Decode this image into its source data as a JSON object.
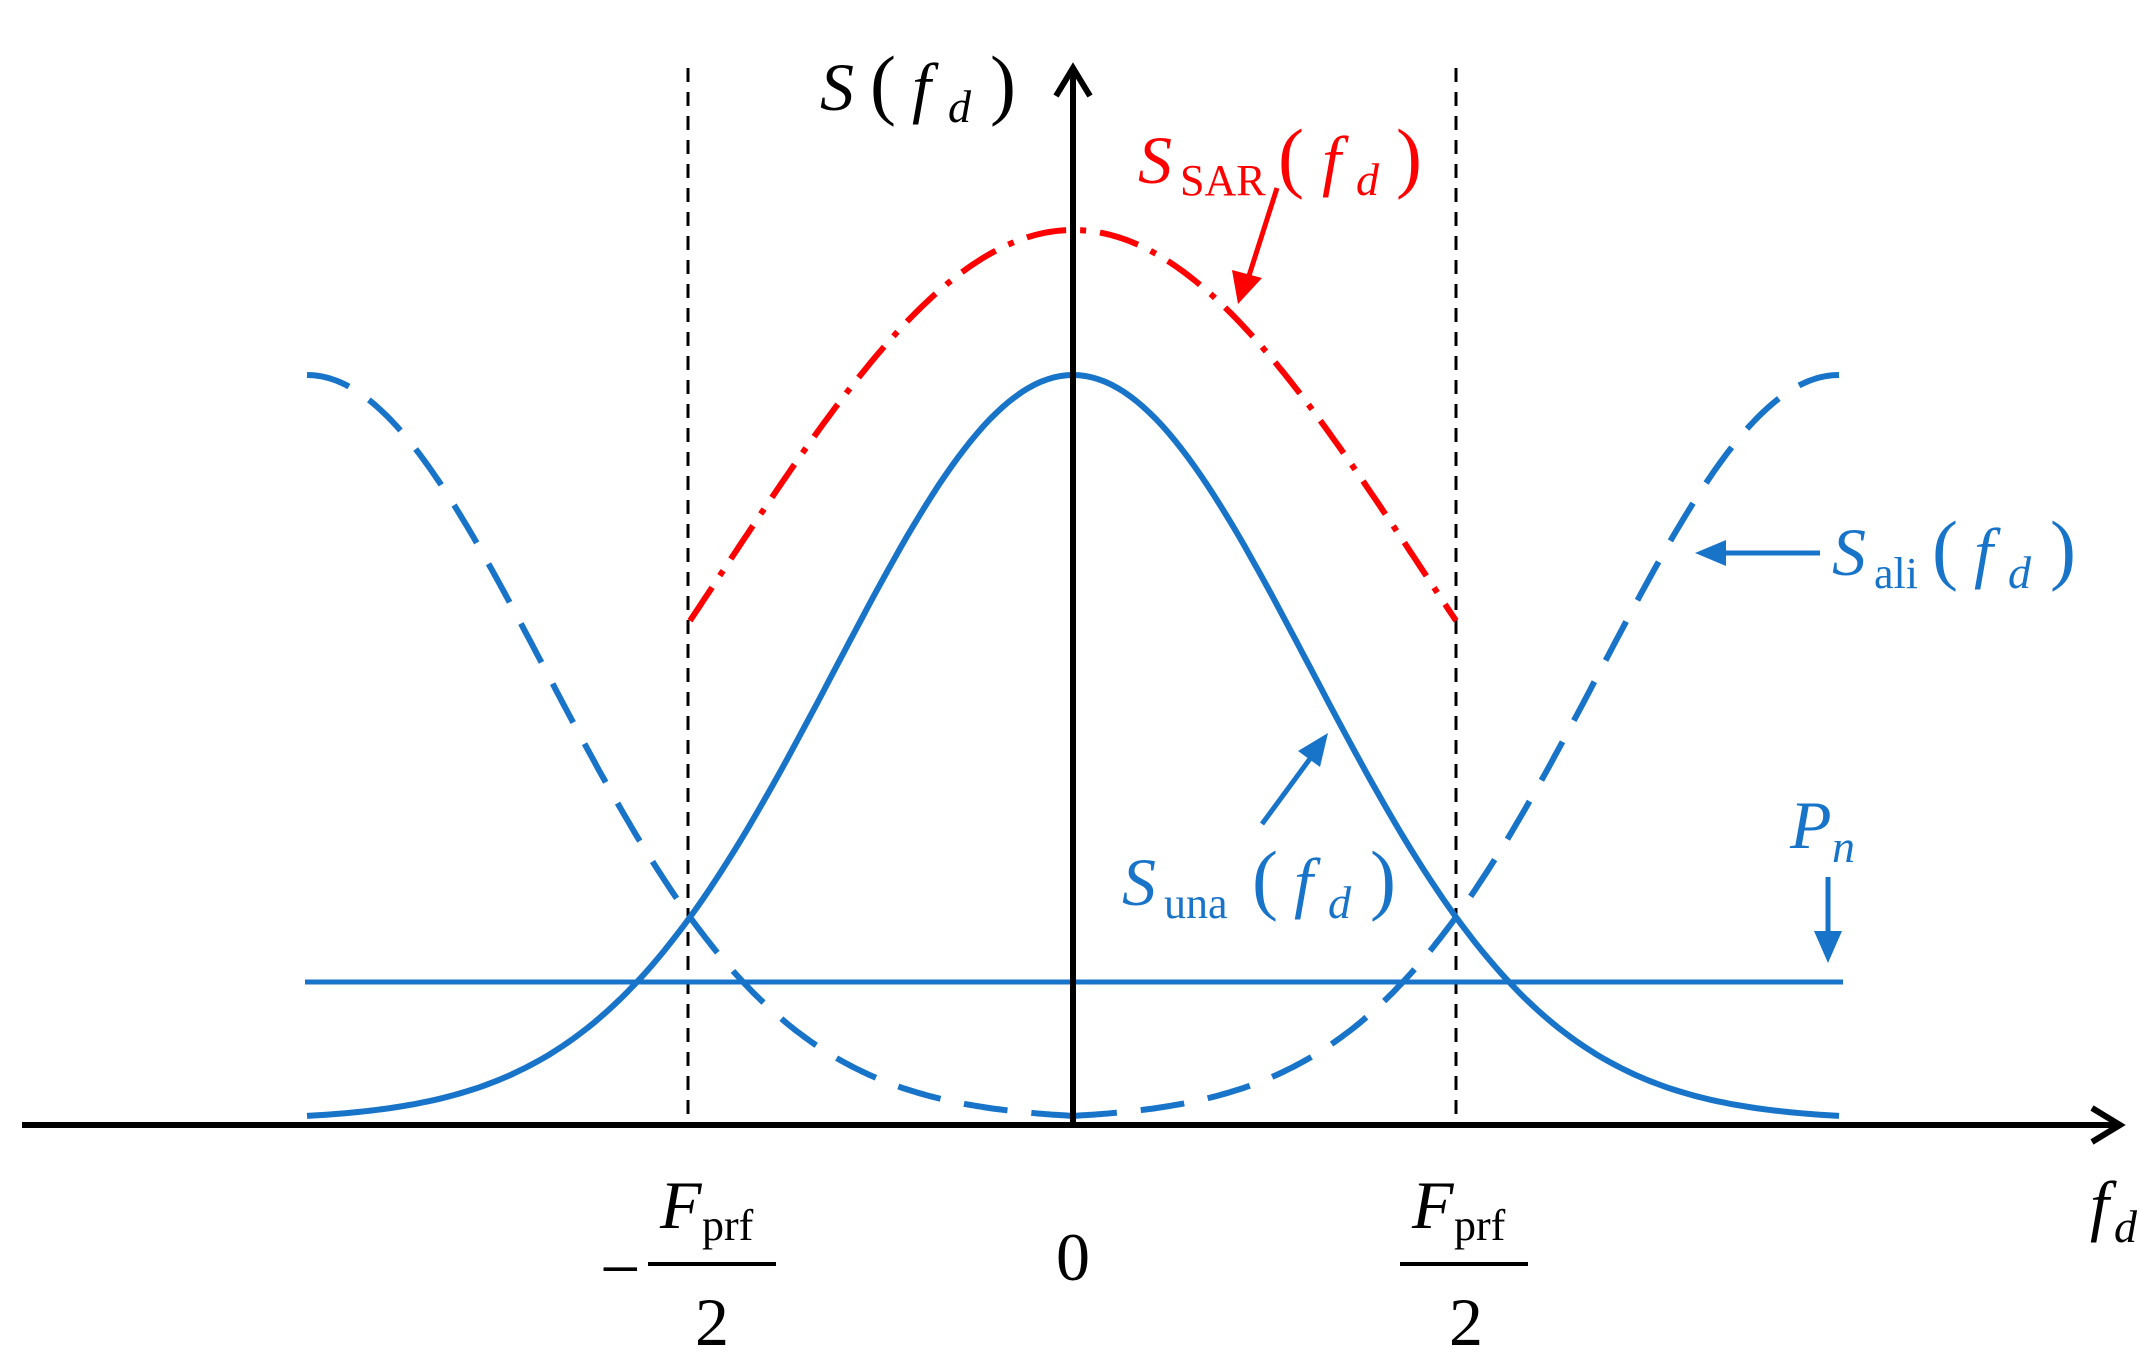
{
  "colors": {
    "axis": "#000000",
    "blue": "#1874C8",
    "red": "#FF0000",
    "background": "#FFFFFF"
  },
  "labels": {
    "y_axis": {
      "main": "S",
      "paren_open": "(",
      "f": "f",
      "sub": "d",
      "paren_close": ")"
    },
    "x_axis": {
      "f": "f",
      "sub": "d"
    },
    "s_sar": {
      "main": "S",
      "sub": "SAR",
      "paren_open": "(",
      "f": "f",
      "fsub": "d",
      "paren_close": ")"
    },
    "s_ali": {
      "main": "S",
      "sub": "ali",
      "paren_open": "(",
      "f": "f",
      "fsub": "d",
      "paren_close": ")"
    },
    "s_una": {
      "main": "S",
      "sub": "una",
      "paren_open": "(",
      "f": "f",
      "fsub": "d",
      "paren_close": ")"
    },
    "p_n": {
      "main": "P",
      "sub": "n"
    },
    "tick_zero": "0",
    "tick_neg": {
      "minus": "−",
      "num_main": "F",
      "num_sub": "prf",
      "den": "2"
    },
    "tick_pos": {
      "num_main": "F",
      "num_sub": "prf",
      "den": "2"
    }
  },
  "chart_data": {
    "type": "line",
    "x_range": [
      -2,
      2
    ],
    "x_ticks": [
      "-Fprf/2",
      "0",
      "Fprf/2"
    ],
    "series": [
      {
        "name": "Suna(fd)",
        "style": "solid",
        "color": "#1874C8",
        "shape": "gaussian",
        "center": 0,
        "peak": 1.0
      },
      {
        "name": "Sali(fd)",
        "style": "dashed",
        "color": "#1874C8",
        "shape": "gaussian shifted by ±Fprf",
        "peak": 1.0
      },
      {
        "name": "SSAR(fd)",
        "style": "dash-dot",
        "color": "#FF0000",
        "range": [
          -1,
          1
        ],
        "peak": 1.19
      },
      {
        "name": "Pn",
        "style": "solid",
        "color": "#1874C8",
        "shape": "constant",
        "value": 0.19
      }
    ]
  }
}
